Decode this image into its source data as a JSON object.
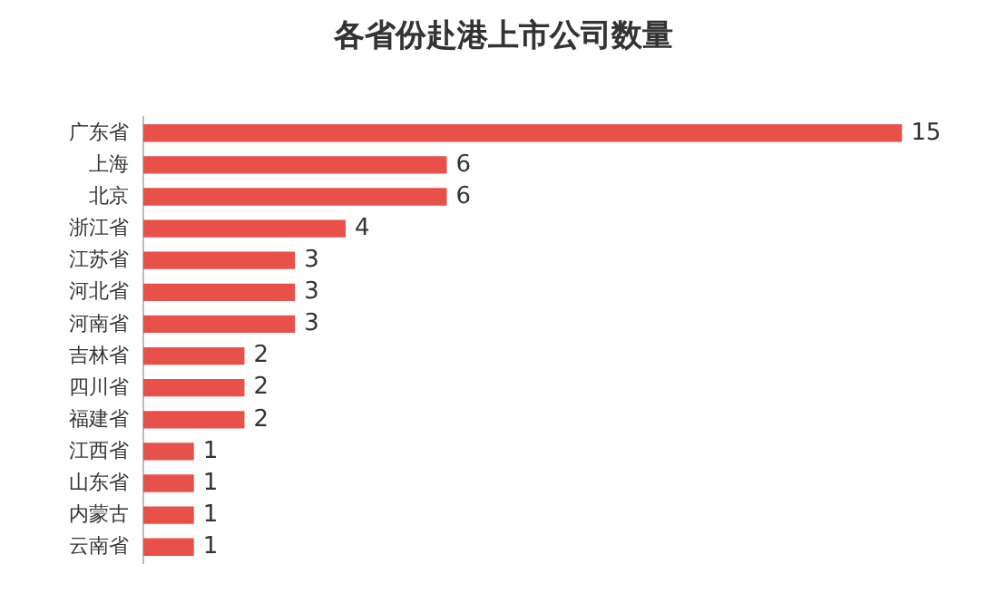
{
  "chart_data": {
    "type": "bar",
    "orientation": "horizontal",
    "title": "各省份赴港上市公司数量",
    "categories": [
      "广东省",
      "上海",
      "北京",
      "浙江省",
      "江苏省",
      "河北省",
      "河南省",
      "吉林省",
      "四川省",
      "福建省",
      "江西省",
      "山东省",
      "内蒙古",
      "云南省"
    ],
    "values": [
      15,
      6,
      6,
      4,
      3,
      3,
      3,
      2,
      2,
      2,
      1,
      1,
      1,
      1
    ],
    "color": "#e8504a",
    "data_labels": true,
    "legend": false
  }
}
